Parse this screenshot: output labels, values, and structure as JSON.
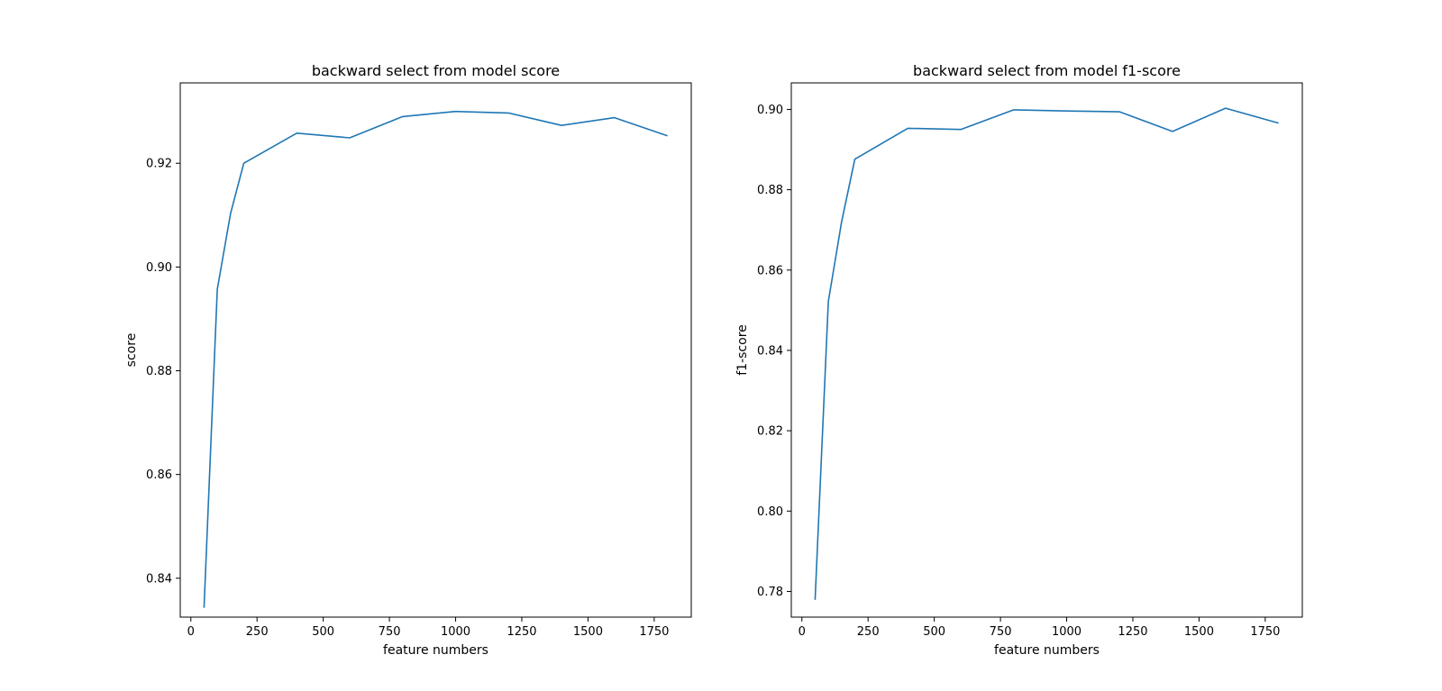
{
  "chart_data": [
    {
      "type": "line",
      "title": "backward select from model score",
      "xlabel": "feature numbers",
      "ylabel": "score",
      "xlim": [
        -40,
        1890
      ],
      "ylim": [
        0.8325,
        0.9355
      ],
      "xticks": [
        0,
        250,
        500,
        750,
        1000,
        1250,
        1500,
        1750
      ],
      "xtick_labels": [
        "0",
        "250",
        "500",
        "750",
        "1000",
        "1250",
        "1500",
        "1750"
      ],
      "yticks": [
        0.84,
        0.86,
        0.88,
        0.9,
        0.92
      ],
      "ytick_labels": [
        "0.84",
        "0.86",
        "0.88",
        "0.90",
        "0.92"
      ],
      "grid": false,
      "series": [
        {
          "color": "#1f77b4",
          "x": [
            50,
            100,
            150,
            200,
            400,
            600,
            800,
            1000,
            1200,
            1400,
            1600,
            1800
          ],
          "y": [
            0.8343,
            0.8957,
            0.9103,
            0.92,
            0.9258,
            0.9249,
            0.929,
            0.93,
            0.9297,
            0.9273,
            0.9288,
            0.9253
          ]
        }
      ]
    },
    {
      "type": "line",
      "title": "backward select from model f1-score",
      "xlabel": "feature numbers",
      "ylabel": "f1-score",
      "xlim": [
        -40,
        1890
      ],
      "ylim": [
        0.7736,
        0.9066
      ],
      "xticks": [
        0,
        250,
        500,
        750,
        1000,
        1250,
        1500,
        1750
      ],
      "xtick_labels": [
        "0",
        "250",
        "500",
        "750",
        "1000",
        "1250",
        "1500",
        "1750"
      ],
      "yticks": [
        0.78,
        0.8,
        0.82,
        0.84,
        0.86,
        0.88,
        0.9
      ],
      "ytick_labels": [
        "0.78",
        "0.80",
        "0.82",
        "0.84",
        "0.86",
        "0.88",
        "0.90"
      ],
      "grid": false,
      "series": [
        {
          "color": "#1f77b4",
          "x": [
            50,
            100,
            150,
            200,
            400,
            600,
            800,
            1000,
            1200,
            1400,
            1600,
            1800
          ],
          "y": [
            0.7779,
            0.8522,
            0.872,
            0.8876,
            0.8953,
            0.895,
            0.8999,
            0.8996,
            0.8994,
            0.8945,
            0.9003,
            0.8966
          ]
        }
      ]
    }
  ]
}
